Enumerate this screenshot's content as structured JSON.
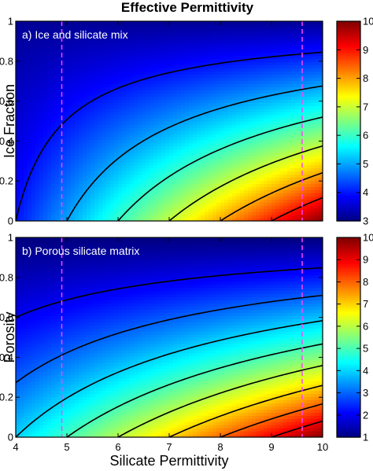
{
  "figure": {
    "title": "Effective Permittivity"
  },
  "chart_data": [
    {
      "type": "heatmap",
      "panel_label": "a) Ice and silicate mix",
      "xlabel": "",
      "ylabel": "Ice Fraction",
      "xlim": [
        4,
        10
      ],
      "ylim": [
        0,
        1
      ],
      "x_ticks": [
        "4",
        "5",
        "6",
        "7",
        "8",
        "9",
        "10"
      ],
      "y_ticks": [
        "0",
        "0.2",
        "0.4",
        "0.6",
        "0.8",
        "1"
      ],
      "x_tick_values": [
        4,
        5,
        6,
        7,
        8,
        9,
        10
      ],
      "y_tick_values": [
        0,
        0.2,
        0.4,
        0.6,
        0.8,
        1
      ],
      "model": {
        "matrix_permittivity": 3.15,
        "colorscale": "jet"
      },
      "colorbar": {
        "min": 3,
        "max": 10,
        "ticks": [
          "3",
          "4",
          "5",
          "6",
          "7",
          "8",
          "9",
          "10"
        ],
        "tick_values": [
          3,
          4,
          5,
          6,
          7,
          8,
          9,
          10
        ]
      },
      "contour_levels": [
        4,
        5,
        6,
        7,
        8,
        9
      ],
      "vertical_lines": [
        4.9,
        9.6
      ],
      "vertical_line_color": "#ff44ff",
      "contour_color": "#000000"
    },
    {
      "type": "heatmap",
      "panel_label": "b) Porous silicate matrix",
      "xlabel": "Silicate Permittivity",
      "ylabel": "Porosity",
      "xlim": [
        4,
        10
      ],
      "ylim": [
        0,
        1
      ],
      "x_ticks": [
        "4",
        "5",
        "6",
        "7",
        "8",
        "9",
        "10"
      ],
      "y_ticks": [
        "0",
        "0.2",
        "0.4",
        "0.6",
        "0.8",
        "1"
      ],
      "x_tick_values": [
        4,
        5,
        6,
        7,
        8,
        9,
        10
      ],
      "y_tick_values": [
        0,
        0.2,
        0.4,
        0.6,
        0.8,
        1
      ],
      "model": {
        "matrix_permittivity": 1,
        "colorscale": "jet"
      },
      "colorbar": {
        "min": 1,
        "max": 10,
        "ticks": [
          "1",
          "2",
          "3",
          "4",
          "5",
          "6",
          "7",
          "8",
          "9",
          "10"
        ],
        "tick_values": [
          1,
          2,
          3,
          4,
          5,
          6,
          7,
          8,
          9,
          10
        ]
      },
      "contour_levels": [
        2,
        3,
        4,
        5,
        6,
        7,
        8,
        9
      ],
      "vertical_lines": [
        4.9,
        9.6
      ],
      "vertical_line_color": "#ff44ff",
      "contour_color": "#000000"
    }
  ]
}
